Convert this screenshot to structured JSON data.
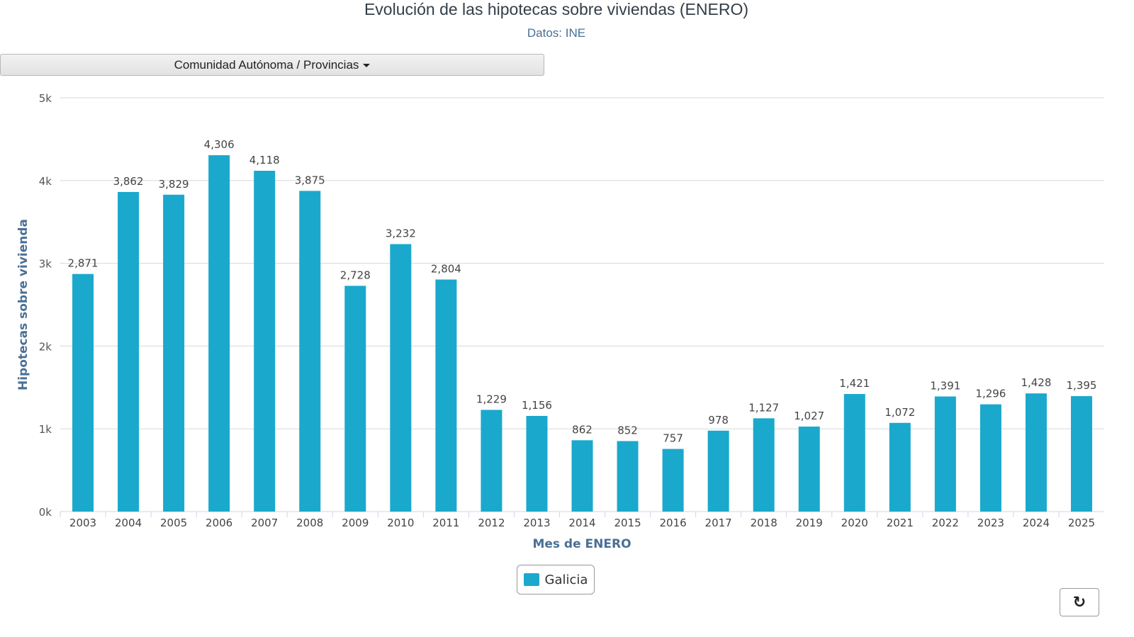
{
  "header": {
    "title": "Evolución de las hipotecas sobre viviendas (ENERO)",
    "subtitle": "Datos: INE",
    "region_selector_label": "Comunidad Autónoma / Provincias"
  },
  "controls": {
    "refresh_icon": "refresh-icon"
  },
  "colors": {
    "series": "#1aa9cc",
    "grid": "#d8d8d8",
    "axis_title": "#4a6f96"
  },
  "chart_data": {
    "type": "bar",
    "title": "Evolución de las hipotecas sobre viviendas (ENERO)",
    "subtitle": "Datos: INE",
    "xlabel": "Mes de ENERO",
    "ylabel": "Hipotecas sobre vivienda",
    "ylim": [
      0,
      5000
    ],
    "yticks": [
      0,
      1000,
      2000,
      3000,
      4000,
      5000
    ],
    "ytick_labels": [
      "0k",
      "1k",
      "2k",
      "3k",
      "4k",
      "5k"
    ],
    "grid": true,
    "legend": "bottom-center",
    "categories": [
      "2003",
      "2004",
      "2005",
      "2006",
      "2007",
      "2008",
      "2009",
      "2010",
      "2011",
      "2012",
      "2013",
      "2014",
      "2015",
      "2016",
      "2017",
      "2018",
      "2019",
      "2020",
      "2021",
      "2022",
      "2023",
      "2024",
      "2025"
    ],
    "series": [
      {
        "name": "Galicia",
        "color": "#1aa9cc",
        "values": [
          2871,
          3862,
          3829,
          4306,
          4118,
          3875,
          2728,
          3232,
          2804,
          1229,
          1156,
          862,
          852,
          757,
          978,
          1127,
          1027,
          1421,
          1072,
          1391,
          1296,
          1428,
          1395
        ],
        "labels": [
          "2,871",
          "3,862",
          "3,829",
          "4,306",
          "4,118",
          "3,875",
          "2,728",
          "3,232",
          "2,804",
          "1,229",
          "1,156",
          "862",
          "852",
          "757",
          "978",
          "1,127",
          "1,027",
          "1,421",
          "1,072",
          "1,391",
          "1,296",
          "1,428",
          "1,395"
        ]
      }
    ]
  }
}
